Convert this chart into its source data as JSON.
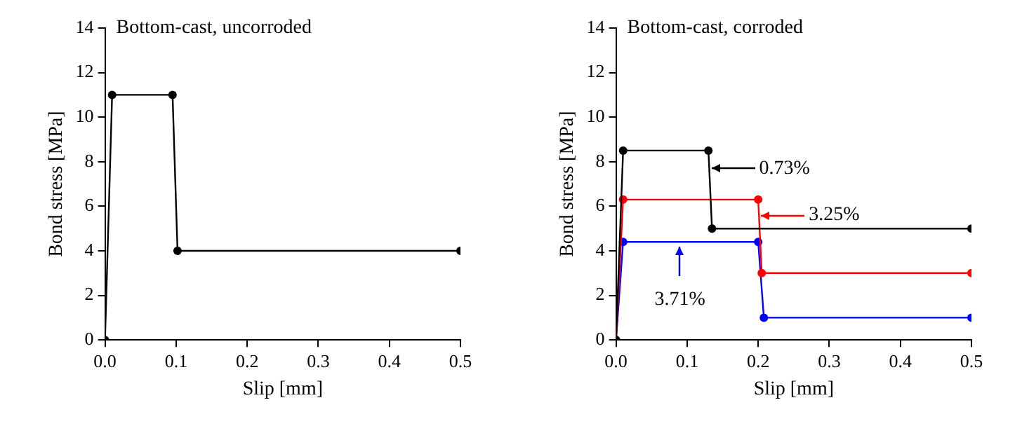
{
  "chart_data": [
    {
      "type": "line",
      "title": "Bottom-cast, uncorroded",
      "xlabel": "Slip [mm]",
      "ylabel": "Bond stress [MPa]",
      "marker": "circle",
      "grid": false,
      "legend": false,
      "x": [
        0,
        0.01,
        0.095,
        0.102,
        0.5
      ],
      "series": [
        {
          "color": "#000000",
          "values": [
            0,
            11,
            11,
            4,
            4
          ]
        }
      ],
      "xlim": [
        0,
        0.5
      ],
      "xticks": [
        {
          "value": 0,
          "label": "0.0"
        },
        0.1,
        0.2,
        0.3,
        0.4,
        0.5
      ],
      "ylim": [
        0,
        14
      ],
      "yticks": [
        0,
        2,
        4,
        6,
        8,
        10,
        12,
        14
      ]
    },
    {
      "type": "line",
      "title": "Bottom-cast, corroded",
      "xlabel": "Slip [mm]",
      "ylabel": "Bond stress [MPa]",
      "marker": "circle",
      "grid": false,
      "legend": false,
      "series": [
        {
          "color": "#000000",
          "x": [
            0,
            0.01,
            0.13,
            0.135,
            0.5
          ],
          "values": [
            0,
            8.5,
            8.5,
            5,
            5
          ]
        },
        {
          "color": "#ff0000",
          "x": [
            0,
            0.01,
            0.2,
            0.205,
            0.5
          ],
          "values": [
            0,
            6.3,
            6.3,
            3,
            3
          ]
        },
        {
          "color": "#0000ff",
          "x": [
            0,
            0.01,
            0.2,
            0.208,
            0.5
          ],
          "values": [
            0,
            4.4,
            4.4,
            1,
            1
          ]
        }
      ],
      "annotations": [
        {
          "text": "0.73%",
          "x": 0.14,
          "y": 7.7
        },
        {
          "text": "3.25%",
          "x": 0.21,
          "y": 5.6
        },
        {
          "text": "3.71%",
          "x": 0.09,
          "y": 4
        }
      ],
      "xlim": [
        0,
        0.5
      ],
      "xticks": [
        {
          "value": 0,
          "label": "0.0"
        },
        0.1,
        0.2,
        0.3,
        0.4,
        0.5
      ],
      "ylim": [
        0,
        14
      ],
      "yticks": [
        0,
        2,
        4,
        6,
        8,
        10,
        12,
        14
      ]
    }
  ]
}
